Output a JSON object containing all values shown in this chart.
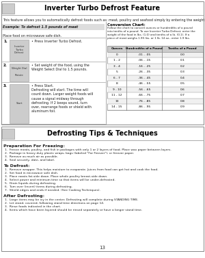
{
  "page_bg": "#ffffff",
  "top_section": {
    "title": "Inverter Turbo Defrost Feature",
    "border_color": "#888888",
    "intro_text": "This feature allows you to automatically defrost foods such as: meat, poultry and seafood simply by entering the weight.",
    "example_label": "Example: To defrost 1.5 pounds of meat",
    "example_label_bg": "#dddddd",
    "place_text": "Place food on microwave safe dish.",
    "steps": [
      {
        "num": "1.",
        "label": "Inverter\nTurbo\nDefrost",
        "instruction": "• Press Inverter Turbo Defrost."
      },
      {
        "num": "2.",
        "label": "Weight Dial\n\nRotate",
        "instruction": "• Set weight of the food, using the\nWeight Select Dial to 1.5 pounds."
      },
      {
        "num": "3.",
        "label": "Start",
        "instruction": "• Press Start.\nDefrosting will start. The time will\ncount down. Larger weight foods will\ncause a signal midway through\ndefrosting. If 2 beeps sound, turn\nover, rearrange foods or shield with\naluminum foil."
      }
    ],
    "conversion": {
      "title": "Conversion Chart:",
      "text": "Follow the chart to convert ounces or hundredths of a pound\ninto tenths of a pound. To use Inverter Turbo Defrost, enter the\nweight of the food in lbs. (1.0) and tenths of a lb. (0.1). If a\npiece of meat weighs 1.95 lbs. or 1 lb. 14 oz., enter 1.9 lbs.",
      "headers": [
        "Ounces",
        "Hundredths of a Pound",
        "Tenths of a Pound"
      ],
      "rows": [
        [
          "0",
          ".01 - .05",
          "0.0"
        ],
        [
          "1 - 2",
          ".06 - .15",
          "0.1"
        ],
        [
          "3 - 4",
          ".16 - .25",
          "0.2"
        ],
        [
          "5",
          ".26 - .35",
          "0.3"
        ],
        [
          "6 - 7",
          ".36 - .45",
          "0.4"
        ],
        [
          "8",
          ".46 - .55",
          "0.5"
        ],
        [
          "9 - 10",
          ".56 - .65",
          "0.6"
        ],
        [
          "11 - 12",
          ".66 - .75",
          "0.7"
        ],
        [
          "13",
          ".76 - .85",
          "0.8"
        ],
        [
          "14 - 15",
          ".86 - .95",
          "0.9"
        ]
      ]
    }
  },
  "bottom_section": {
    "title": "Defrosting Tips & Techniques",
    "border_color": "#888888",
    "sections": [
      {
        "heading": "Preparation For Freezing:",
        "items": [
          "1.  Freeze meats, poultry, and fish in packages with only 1 or 2 layers of food. Place wax paper between layers.",
          "2.  Package in heavy duty plastic wraps, bags (labeled \"For Freezer\"), or freezer paper.",
          "3.  Remove as much air as possible.",
          "4.  Seal securely, date, and label."
        ]
      },
      {
        "heading": "To Defrost:",
        "items": [
          "1.  Remove wrapper. This helps moisture to evaporate. Juices from food can get hot and cook the food.",
          "2.  Set food in microwave safe dish.",
          "3.  Place roasts fat-side down. Place whole poultry breast-side down.",
          "4.  Select power and minimum time so that items will be under-defrosted.",
          "5.  Drain liquids during defrosting.",
          "6.  Turn over (invert) items during defrosting.",
          "7.  Shield edges and ends if needed. (See Cooking Techniques)."
        ]
      },
      {
        "heading": "After Defrosting:",
        "items": [
          "1.  Large items may be icy in the center. Defrosting will complete during STANDING TIME.",
          "2.  Let stand, covered, following stand time directions on page 14.",
          "3.  Rinse foods indicated in the chart.",
          "4.  Items which have been layered should be rinsed separately or have a longer stand time."
        ]
      }
    ],
    "page_num": "13"
  }
}
